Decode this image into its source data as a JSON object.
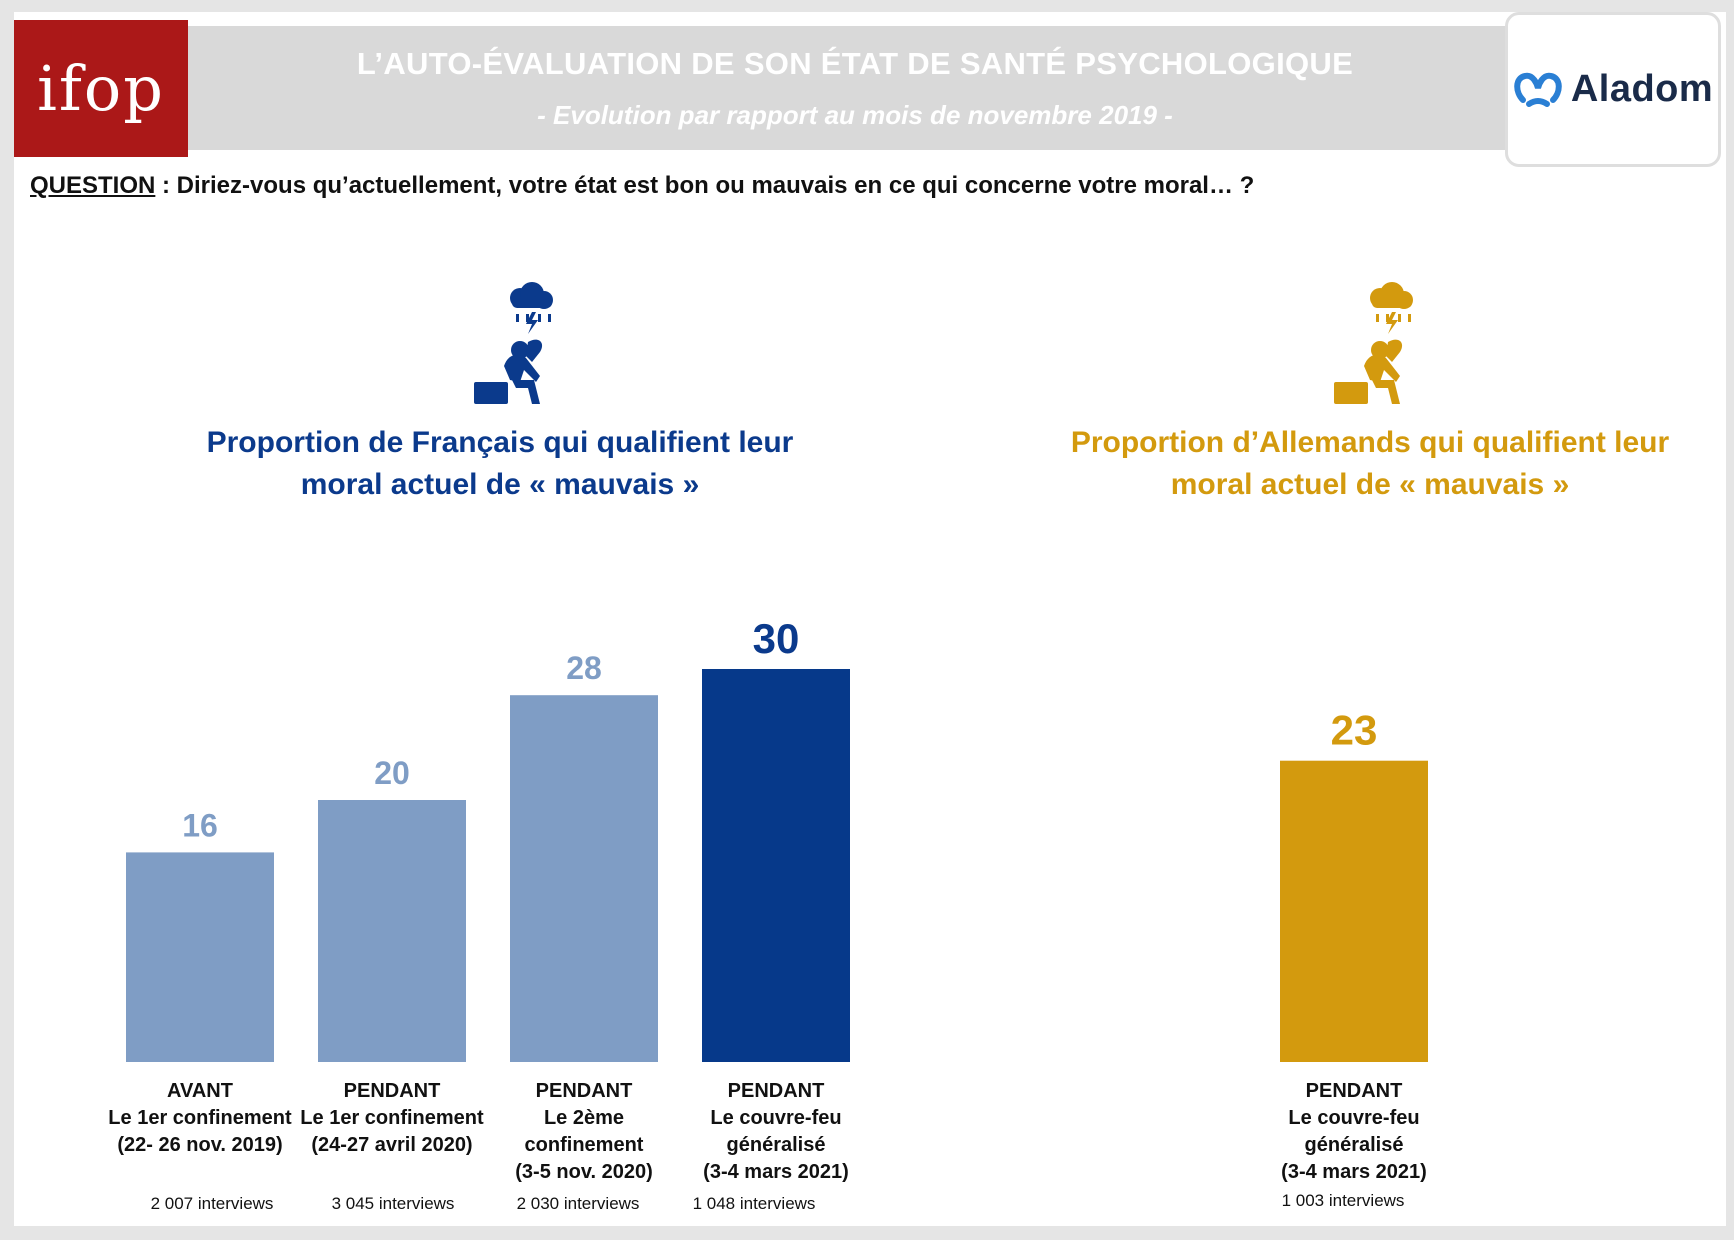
{
  "header": {
    "logo_left": "ifop",
    "title": "L’AUTO-ÉVALUATION DE SON ÉTAT DE SANTÉ PSYCHOLOGIQUE",
    "subtitle": "- Evolution par rapport au mois de novembre 2019 -",
    "logo_right": "Aladom"
  },
  "question": {
    "label": "QUESTION",
    "separator": " :  ",
    "text": "Diriez-vous qu’actuellement, votre état est bon ou mauvais en ce qui concerne votre moral… ?"
  },
  "icons": {
    "france": "sad-person-raincloud-icon",
    "germany": "sad-person-raincloud-icon"
  },
  "colors": {
    "fr_light": "#7f9dc5",
    "fr_dark": "#06398a",
    "de": "#d39a0e",
    "fr_light_label": "#7f9dc5",
    "fr_dark_label": "#0b3a8c",
    "header_red": "#ab1818",
    "header_grey": "#d9d9d9"
  },
  "chart_data": [
    {
      "type": "bar",
      "title": "Proportion de Français qui qualifient leur moral actuel de « mauvais »",
      "categories": [
        [
          "AVANT",
          "Le 1er confinement",
          "(22- 26 nov. 2019)"
        ],
        [
          "PENDANT",
          "Le 1er confinement",
          "(24-27 avril 2020)"
        ],
        [
          "PENDANT",
          "Le 2ème",
          "confinement",
          "(3-5 nov. 2020)"
        ],
        [
          "PENDANT",
          "Le couvre-feu",
          "généralisé",
          "(3-4 mars 2021)"
        ]
      ],
      "values": [
        16,
        20,
        28,
        30
      ],
      "highlight": [
        false,
        false,
        false,
        true
      ],
      "interviews": [
        "2 007 interviews",
        "3 045 interviews",
        "2 030 interviews",
        "1 048 interviews"
      ],
      "ylim": [
        0,
        30
      ]
    },
    {
      "type": "bar",
      "title": "Proportion d’Allemands qui qualifient leur moral actuel de « mauvais »",
      "categories": [
        [
          "PENDANT",
          "Le couvre-feu",
          "généralisé",
          "(3-4 mars 2021)"
        ]
      ],
      "values": [
        23
      ],
      "highlight": [
        true
      ],
      "interviews": [
        "1 003 interviews"
      ],
      "ylim": [
        0,
        30
      ]
    }
  ]
}
